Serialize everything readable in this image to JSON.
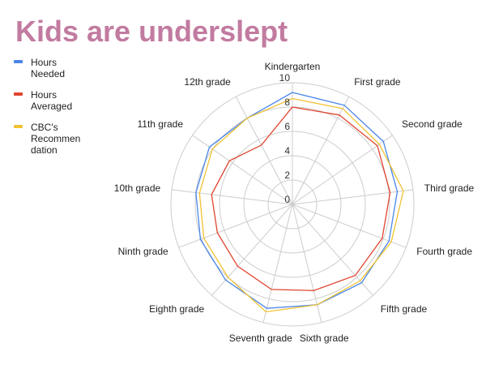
{
  "title": "Kids are underslept",
  "chart_data": {
    "type": "radar",
    "categories": [
      "Kindergarten",
      "First grade",
      "Second grade",
      "Third grade",
      "Fourth grade",
      "Fifth grade",
      "Sixth grade",
      "Seventh grade",
      "Eighth grade",
      "Ninth grade",
      "10th grade",
      "11th grade",
      "12th grade"
    ],
    "series": [
      {
        "name": "Hours Needed",
        "legend_lines": [
          "Hours",
          "Needed"
        ],
        "color": "#4a86e8",
        "values": [
          9.2,
          9.2,
          9.1,
          8.7,
          8.5,
          8.6,
          8.5,
          8.8,
          8.3,
          8.1,
          8.0,
          8.3,
          8.0
        ]
      },
      {
        "name": "Hours Averaged",
        "legend_lines": [
          "Hours",
          "Averaged"
        ],
        "color": "#e0442f",
        "values": [
          8.0,
          8.3,
          8.5,
          8.1,
          7.9,
          7.8,
          7.3,
          7.2,
          6.8,
          6.6,
          6.7,
          6.3,
          5.5
        ]
      },
      {
        "name": "CBC's Recommendation",
        "legend_lines": [
          "CBC's",
          "Recommen",
          "dation"
        ],
        "color": "#f1c232",
        "values": [
          8.7,
          8.9,
          8.7,
          9.2,
          8.7,
          8.4,
          8.5,
          9.1,
          8.0,
          7.8,
          7.7,
          8.0,
          8.0
        ]
      }
    ],
    "rlim": [
      0,
      10
    ],
    "ticks": [
      0,
      2,
      4,
      6,
      8,
      10
    ],
    "grid": true,
    "legend_position": "left"
  }
}
